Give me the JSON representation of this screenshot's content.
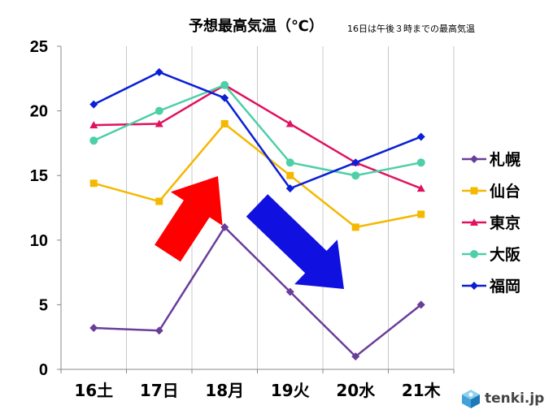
{
  "title": "予想最高気温（℃）",
  "note": "16日は午後３時までの最高気温",
  "logo": "tenki.jp",
  "chart_data": {
    "type": "line",
    "categories": [
      "16土",
      "17日",
      "18月",
      "19火",
      "20水",
      "21木"
    ],
    "ylim": [
      0,
      25
    ],
    "yticks": [
      0,
      5,
      10,
      15,
      20,
      25
    ],
    "grid": "vertical",
    "legend": "right",
    "series": [
      {
        "name": "札幌",
        "color": "#6a3d9a",
        "marker": "diamond",
        "values": [
          3.2,
          3.0,
          11,
          6,
          1,
          5
        ]
      },
      {
        "name": "仙台",
        "color": "#f5b800",
        "marker": "square",
        "values": [
          14.4,
          13,
          19,
          15,
          11,
          12
        ]
      },
      {
        "name": "東京",
        "color": "#e0115f",
        "marker": "triangle",
        "values": [
          18.9,
          19,
          22,
          19,
          16,
          14
        ]
      },
      {
        "name": "大阪",
        "color": "#4ecfa8",
        "marker": "circle",
        "values": [
          17.7,
          20,
          22,
          16,
          15,
          16
        ]
      },
      {
        "name": "福岡",
        "color": "#0a1fd6",
        "marker": "diamond",
        "values": [
          20.5,
          23,
          21,
          14,
          16,
          18
        ]
      }
    ],
    "annotations": [
      {
        "type": "arrow",
        "direction": "up",
        "color": "#ff0000"
      },
      {
        "type": "arrow",
        "direction": "down",
        "color": "#1010e0"
      }
    ]
  }
}
